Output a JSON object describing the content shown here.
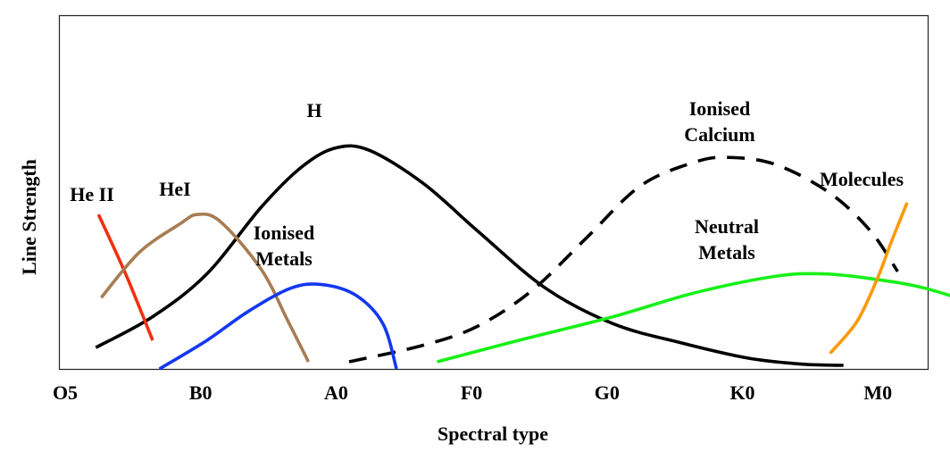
{
  "chart_data": {
    "type": "line",
    "title": "",
    "xlabel": "Spectral type",
    "ylabel": "Line Strength",
    "x_ticks": [
      "O5",
      "B0",
      "A0",
      "F0",
      "G0",
      "K0",
      "M0"
    ],
    "x_domain": [
      0,
      6.85
    ],
    "y_domain": [
      0,
      10
    ],
    "grid": false,
    "series": [
      {
        "name": "H",
        "label_lines": [
          "H"
        ],
        "color": "#000000",
        "dash": false,
        "points": [
          [
            0.18,
            0.9
          ],
          [
            0.6,
            2.2
          ],
          [
            1.0,
            4.0
          ],
          [
            1.4,
            6.8
          ],
          [
            1.7,
            8.5
          ],
          [
            1.95,
            9.3
          ],
          [
            2.2,
            9.2
          ],
          [
            2.6,
            7.8
          ],
          [
            3.0,
            5.8
          ],
          [
            3.5,
            3.4
          ],
          [
            4.0,
            1.9
          ],
          [
            4.5,
            1.1
          ],
          [
            5.0,
            0.45
          ],
          [
            5.4,
            0.2
          ],
          [
            5.7,
            0.15
          ]
        ]
      },
      {
        "name": "He II",
        "label_lines": [
          "He II"
        ],
        "color": "#f03010",
        "dash": false,
        "points": [
          [
            0.2,
            6.5
          ],
          [
            0.4,
            4.0
          ],
          [
            0.6,
            1.2
          ]
        ]
      },
      {
        "name": "HeI",
        "label_lines": [
          "HeI"
        ],
        "color": "#a87c52",
        "dash": false,
        "points": [
          [
            0.22,
            3.0
          ],
          [
            0.5,
            4.9
          ],
          [
            0.8,
            6.1
          ],
          [
            0.93,
            6.5
          ],
          [
            1.1,
            6.2
          ],
          [
            1.4,
            4.2
          ],
          [
            1.6,
            2.0
          ],
          [
            1.75,
            0.3
          ]
        ]
      },
      {
        "name": "Ionised Metals",
        "label_lines": [
          "Ionised",
          "Metals"
        ],
        "color": "#1438f0",
        "dash": false,
        "points": [
          [
            0.65,
            0.0
          ],
          [
            1.0,
            1.2
          ],
          [
            1.3,
            2.4
          ],
          [
            1.62,
            3.4
          ],
          [
            1.85,
            3.55
          ],
          [
            2.1,
            3.1
          ],
          [
            2.3,
            1.9
          ],
          [
            2.4,
            0.0
          ]
        ]
      },
      {
        "name": "Ionised Calcium",
        "label_lines": [
          "Ionised",
          "Calcium"
        ],
        "color": "#000000",
        "dash": true,
        "points": [
          [
            2.05,
            0.3
          ],
          [
            2.6,
            1.0
          ],
          [
            3.0,
            1.8
          ],
          [
            3.4,
            3.3
          ],
          [
            3.8,
            5.5
          ],
          [
            4.2,
            7.7
          ],
          [
            4.6,
            8.7
          ],
          [
            4.85,
            8.9
          ],
          [
            5.2,
            8.6
          ],
          [
            5.6,
            7.4
          ],
          [
            5.9,
            5.8
          ],
          [
            6.1,
            4.1
          ]
        ]
      },
      {
        "name": "Neutral Metals",
        "label_lines": [
          "Neutral",
          "Metals"
        ],
        "color": "#18f018",
        "dash": false,
        "points": [
          [
            2.7,
            0.3
          ],
          [
            3.3,
            1.2
          ],
          [
            4.0,
            2.2
          ],
          [
            4.6,
            3.2
          ],
          [
            5.2,
            3.9
          ],
          [
            5.55,
            4.0
          ],
          [
            5.9,
            3.8
          ],
          [
            6.3,
            3.4
          ],
          [
            6.8,
            2.5
          ]
        ]
      },
      {
        "name": "Molecules",
        "label_lines": [
          "Molecules"
        ],
        "color": "#fa9a0c",
        "dash": false,
        "points": [
          [
            5.6,
            0.65
          ],
          [
            5.8,
            2.0
          ],
          [
            5.95,
            3.8
          ],
          [
            6.05,
            5.3
          ],
          [
            6.17,
            7.0
          ]
        ]
      }
    ]
  }
}
